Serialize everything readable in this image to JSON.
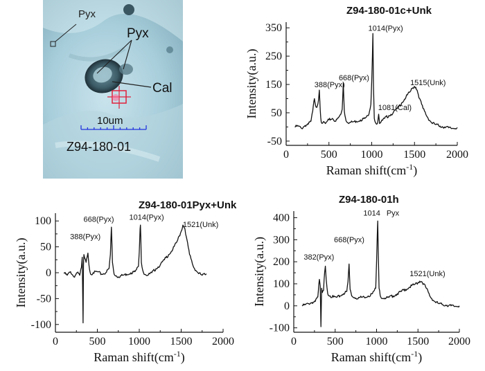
{
  "micrograph": {
    "labels": {
      "pyx_small": "Pyx",
      "pyx_large": "Pyx",
      "cal": "Cal",
      "scale": "10um",
      "sample": "Z94-180-01"
    }
  },
  "chart_data": [
    {
      "type": "line",
      "title": "Z94-180-01c+Unk",
      "xlabel": "Raman shift(cm",
      "xlabel_sup": "-1",
      "xlabel_end": ")",
      "ylabel": "Intensity(a.u.)",
      "xlim": [
        0,
        2000
      ],
      "ylim": [
        -65,
        370
      ],
      "xticks": [
        0,
        500,
        1000,
        1500,
        2000
      ],
      "yticks": [
        -50,
        50,
        150,
        250,
        350
      ],
      "yminor": [
        0,
        100,
        200,
        300
      ],
      "annotations": [
        {
          "text": "388(Pyx)",
          "x": 330,
          "y": 140
        },
        {
          "text": "668(Pyx)",
          "x": 615,
          "y": 165
        },
        {
          "text": "1014(Pyx)",
          "x": 960,
          "y": 340
        },
        {
          "text": "1515(Unk)",
          "x": 1450,
          "y": 148
        },
        {
          "text": "1081(Cal)",
          "x": 1075,
          "y": 60
        }
      ],
      "x": [
        100,
        140,
        180,
        220,
        260,
        290,
        310,
        330,
        350,
        365,
        378,
        388,
        398,
        410,
        430,
        460,
        500,
        540,
        580,
        610,
        640,
        655,
        668,
        680,
        700,
        740,
        780,
        820,
        870,
        920,
        960,
        990,
        1000,
        1008,
        1014,
        1020,
        1030,
        1050,
        1070,
        1081,
        1092,
        1110,
        1150,
        1200,
        1250,
        1300,
        1350,
        1400,
        1450,
        1480,
        1500,
        1515,
        1530,
        1560,
        1600,
        1650,
        1700,
        1750,
        1800,
        1850,
        1900,
        1950,
        2000
      ],
      "y": [
        0,
        3,
        -5,
        5,
        10,
        20,
        55,
        100,
        70,
        75,
        95,
        130,
        60,
        18,
        15,
        12,
        25,
        30,
        20,
        32,
        45,
        62,
        155,
        55,
        22,
        15,
        18,
        20,
        25,
        30,
        40,
        80,
        160,
        250,
        330,
        150,
        30,
        12,
        15,
        45,
        12,
        18,
        30,
        40,
        50,
        65,
        85,
        105,
        125,
        138,
        143,
        140,
        130,
        100,
        65,
        35,
        15,
        8,
        3,
        0,
        -3,
        -5,
        -2
      ]
    },
    {
      "type": "line",
      "title": "Z94-180-01Pyx+Unk",
      "xlabel": "Raman shift(cm",
      "xlabel_sup": "-1",
      "xlabel_end": ")",
      "ylabel": "Intensity(a.u.)",
      "xlim": [
        0,
        2000
      ],
      "ylim": [
        -115,
        115
      ],
      "xticks": [
        0,
        500,
        1000,
        1500,
        2000
      ],
      "yticks": [
        -100,
        -50,
        0,
        50,
        100
      ],
      "yminor": [
        -75,
        -25,
        25,
        75
      ],
      "annotations": [
        {
          "text": "668(Pyx)",
          "x": 335,
          "y": 98
        },
        {
          "text": "1014(Pyx)",
          "x": 880,
          "y": 102
        },
        {
          "text": "1521(Unk)",
          "x": 1520,
          "y": 88
        },
        {
          "text": "388(Pyx)",
          "x": 175,
          "y": 65
        }
      ],
      "x": [
        100,
        140,
        180,
        220,
        260,
        290,
        310,
        320,
        330,
        335,
        340,
        350,
        365,
        378,
        388,
        400,
        420,
        450,
        500,
        550,
        600,
        640,
        655,
        668,
        680,
        700,
        750,
        800,
        850,
        900,
        950,
        990,
        1000,
        1010,
        1014,
        1018,
        1025,
        1050,
        1100,
        1150,
        1200,
        1250,
        1300,
        1350,
        1400,
        1450,
        1500,
        1521,
        1545,
        1560,
        1600,
        1650,
        1700,
        1750,
        1800
      ],
      "y": [
        0,
        -5,
        2,
        -8,
        0,
        -5,
        10,
        30,
        -97,
        15,
        35,
        28,
        20,
        30,
        38,
        15,
        -3,
        0,
        2,
        -3,
        0,
        8,
        35,
        88,
        20,
        -3,
        -8,
        -5,
        -3,
        0,
        2,
        12,
        40,
        85,
        92,
        70,
        20,
        0,
        -5,
        0,
        8,
        15,
        25,
        35,
        45,
        60,
        80,
        92,
        85,
        70,
        35,
        10,
        0,
        -5,
        -2
      ]
    },
    {
      "type": "line",
      "title": "Z94-180-01h",
      "xlabel": "Raman shift(cm",
      "xlabel_sup": "-1",
      "xlabel_end": ")",
      "ylabel": "Intensity(a.u.)",
      "xlim": [
        0,
        2000
      ],
      "ylim": [
        -120,
        430
      ],
      "xticks": [
        0,
        500,
        1000,
        1500,
        2000
      ],
      "yticks": [
        -100,
        0,
        100,
        200,
        300,
        400
      ],
      "yminor": [
        -50,
        50,
        150,
        250,
        350
      ],
      "annotations": [
        {
          "text": "382(Pyx)",
          "x": 120,
          "y": 210
        },
        {
          "text": "668(Pyx)",
          "x": 485,
          "y": 288
        },
        {
          "text": "1014",
          "x": 840,
          "y": 410
        },
        {
          "text": "Pyx",
          "x": 1120,
          "y": 410
        },
        {
          "text": "1521(Unk)",
          "x": 1400,
          "y": 135
        }
      ],
      "x": [
        100,
        140,
        180,
        220,
        260,
        290,
        310,
        320,
        328,
        336,
        345,
        360,
        372,
        382,
        392,
        410,
        440,
        480,
        520,
        560,
        600,
        640,
        655,
        668,
        680,
        700,
        750,
        800,
        850,
        900,
        950,
        990,
        1000,
        1008,
        1014,
        1020,
        1030,
        1050,
        1100,
        1150,
        1200,
        1250,
        1300,
        1350,
        1400,
        1450,
        1500,
        1521,
        1545,
        1570,
        1600,
        1650,
        1700,
        1750,
        1800,
        1850,
        1900,
        1950,
        2000
      ],
      "y": [
        0,
        5,
        10,
        15,
        20,
        40,
        120,
        90,
        -95,
        80,
        60,
        70,
        150,
        180,
        120,
        55,
        45,
        40,
        38,
        45,
        55,
        65,
        110,
        190,
        75,
        45,
        35,
        38,
        40,
        45,
        55,
        80,
        200,
        320,
        385,
        250,
        80,
        40,
        35,
        38,
        45,
        55,
        65,
        75,
        85,
        95,
        105,
        112,
        110,
        100,
        80,
        40,
        20,
        10,
        5,
        3,
        0,
        -2,
        0
      ]
    }
  ]
}
